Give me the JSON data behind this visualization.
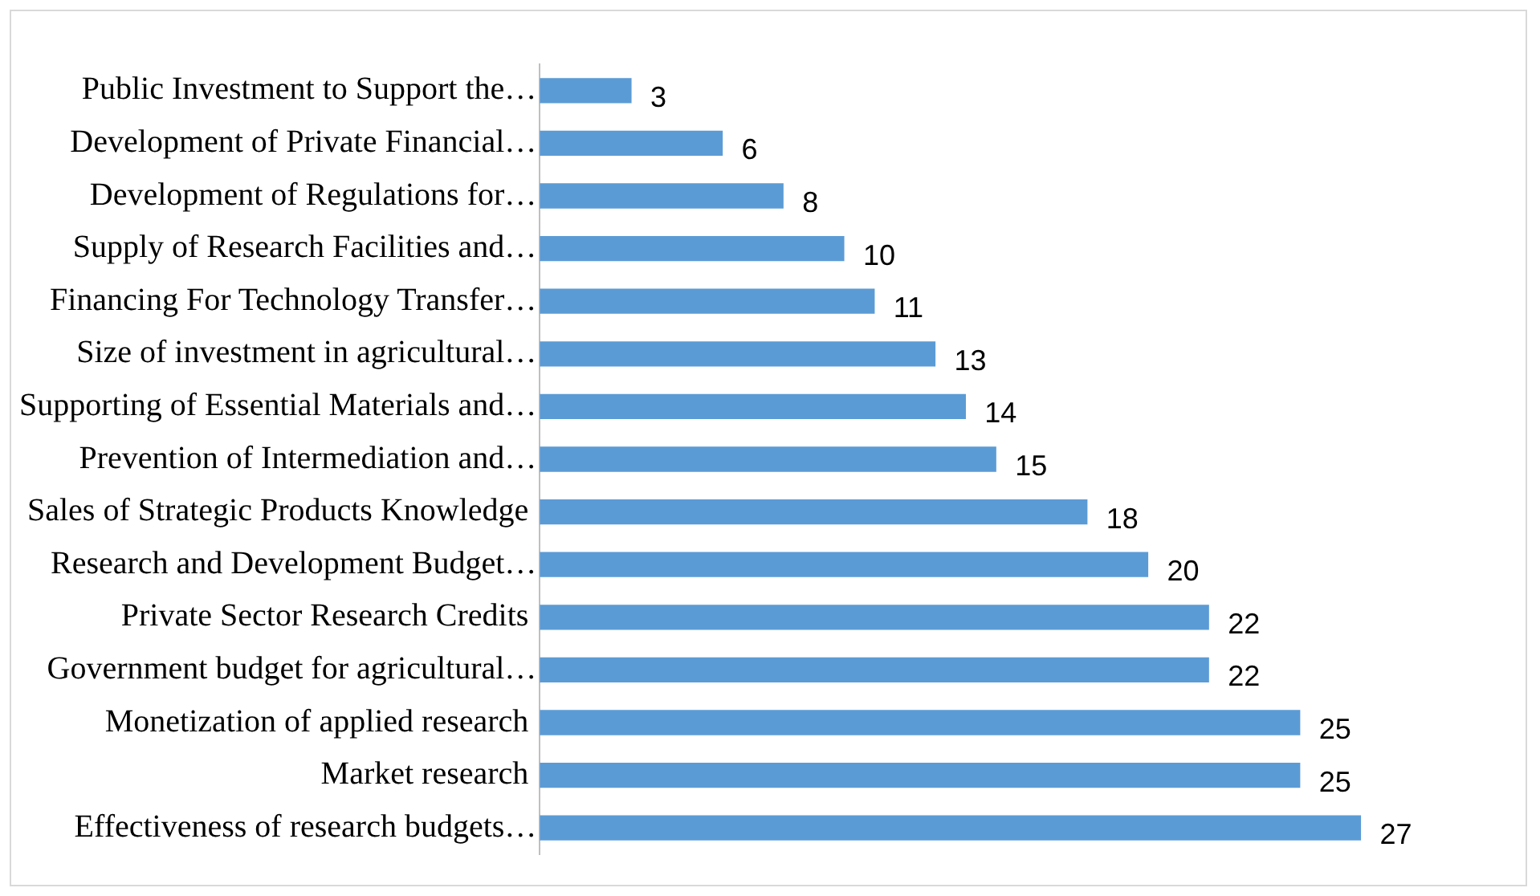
{
  "chart_data": {
    "type": "bar",
    "orientation": "horizontal",
    "categories": [
      "Public Investment to Support the…",
      "Development of Private Financial…",
      "Development of Regulations for…",
      "Supply of Research Facilities and…",
      "Financing For Technology Transfer…",
      "Size of investment in agricultural…",
      "Supporting of Essential Materials and…",
      "Prevention of Intermediation and…",
      "Sales of Strategic Products Knowledge ",
      "Research and Development Budget…",
      "Private Sector Research Credits ",
      "Government budget for agricultural…",
      "Monetization of applied research ",
      "Market research ",
      "Effectiveness of research budgets…"
    ],
    "values": [
      3,
      6,
      8,
      10,
      11,
      13,
      14,
      15,
      18,
      20,
      22,
      22,
      25,
      25,
      27
    ],
    "color": "#5b9bd5",
    "data_labels": true,
    "grid": false,
    "legend": false,
    "tick_labels": "y"
  }
}
